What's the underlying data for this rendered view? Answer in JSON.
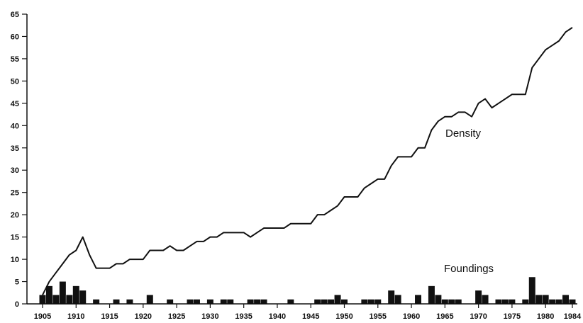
{
  "chart_data": {
    "type": "line",
    "annotations": {
      "density": "Density",
      "foundings": "Foundings"
    },
    "xlim": [
      1905,
      1984
    ],
    "ylim": [
      0,
      65
    ],
    "x_ticks": [
      1905,
      1910,
      1915,
      1920,
      1925,
      1930,
      1935,
      1940,
      1945,
      1950,
      1955,
      1960,
      1965,
      1970,
      1975,
      1980,
      1984
    ],
    "x_tick_labels": [
      "1905",
      "1910",
      "1915",
      "1920",
      "1925",
      "1930",
      "1935",
      "1940",
      "1945",
      "1950",
      "1955",
      "1960",
      "1965",
      "1970",
      "1975",
      "1980",
      "1984"
    ],
    "y_ticks": [
      0,
      5,
      10,
      15,
      20,
      25,
      30,
      35,
      40,
      45,
      50,
      55,
      60,
      65
    ],
    "y_tick_labels": [
      "0",
      "5",
      "10",
      "15",
      "20",
      "25",
      "30",
      "35",
      "40",
      "45",
      "50",
      "55",
      "60",
      "65"
    ],
    "grid": false,
    "series": [
      {
        "name": "Density",
        "type": "line",
        "x": [
          1905,
          1906,
          1907,
          1908,
          1909,
          1910,
          1911,
          1912,
          1913,
          1914,
          1915,
          1916,
          1917,
          1918,
          1919,
          1920,
          1921,
          1922,
          1923,
          1924,
          1925,
          1926,
          1927,
          1928,
          1929,
          1930,
          1931,
          1932,
          1933,
          1934,
          1935,
          1936,
          1937,
          1938,
          1939,
          1940,
          1941,
          1942,
          1943,
          1944,
          1945,
          1946,
          1947,
          1948,
          1949,
          1950,
          1951,
          1952,
          1953,
          1954,
          1955,
          1956,
          1957,
          1958,
          1959,
          1960,
          1961,
          1962,
          1963,
          1964,
          1965,
          1966,
          1967,
          1968,
          1969,
          1970,
          1971,
          1972,
          1973,
          1974,
          1975,
          1976,
          1977,
          1978,
          1979,
          1980,
          1981,
          1982,
          1983,
          1984
        ],
        "y": [
          2,
          5,
          7,
          9,
          11,
          12,
          15,
          11,
          8,
          8,
          8,
          9,
          9,
          10,
          10,
          10,
          12,
          12,
          12,
          13,
          12,
          12,
          13,
          14,
          14,
          15,
          15,
          16,
          16,
          16,
          16,
          15,
          16,
          17,
          17,
          17,
          17,
          18,
          18,
          18,
          18,
          20,
          20,
          21,
          22,
          24,
          24,
          24,
          26,
          27,
          28,
          28,
          31,
          33,
          33,
          33,
          35,
          35,
          39,
          41,
          42,
          42,
          43,
          43,
          42,
          45,
          46,
          44,
          45,
          46,
          47,
          47,
          47,
          53,
          55,
          57,
          58,
          59,
          61,
          62
        ]
      },
      {
        "name": "Foundings",
        "type": "bar",
        "x": [
          1905,
          1906,
          1907,
          1908,
          1909,
          1910,
          1911,
          1912,
          1913,
          1914,
          1915,
          1916,
          1917,
          1918,
          1919,
          1920,
          1921,
          1922,
          1923,
          1924,
          1925,
          1926,
          1927,
          1928,
          1929,
          1930,
          1931,
          1932,
          1933,
          1934,
          1935,
          1936,
          1937,
          1938,
          1939,
          1940,
          1941,
          1942,
          1943,
          1944,
          1945,
          1946,
          1947,
          1948,
          1949,
          1950,
          1951,
          1952,
          1953,
          1954,
          1955,
          1956,
          1957,
          1958,
          1959,
          1960,
          1961,
          1962,
          1963,
          1964,
          1965,
          1966,
          1967,
          1968,
          1969,
          1970,
          1971,
          1972,
          1973,
          1974,
          1975,
          1976,
          1977,
          1978,
          1979,
          1980,
          1981,
          1982,
          1983,
          1984
        ],
        "y": [
          2,
          4,
          2,
          5,
          2,
          4,
          3,
          0,
          1,
          0,
          0,
          1,
          0,
          1,
          0,
          0,
          2,
          0,
          0,
          1,
          0,
          0,
          1,
          1,
          0,
          1,
          0,
          1,
          1,
          0,
          0,
          1,
          1,
          1,
          0,
          0,
          0,
          1,
          0,
          0,
          0,
          1,
          1,
          1,
          2,
          1,
          0,
          0,
          1,
          1,
          1,
          0,
          3,
          2,
          0,
          0,
          2,
          0,
          4,
          2,
          1,
          1,
          1,
          0,
          0,
          3,
          2,
          0,
          1,
          1,
          1,
          0,
          1,
          6,
          2,
          2,
          1,
          1,
          2,
          1
        ]
      }
    ]
  }
}
